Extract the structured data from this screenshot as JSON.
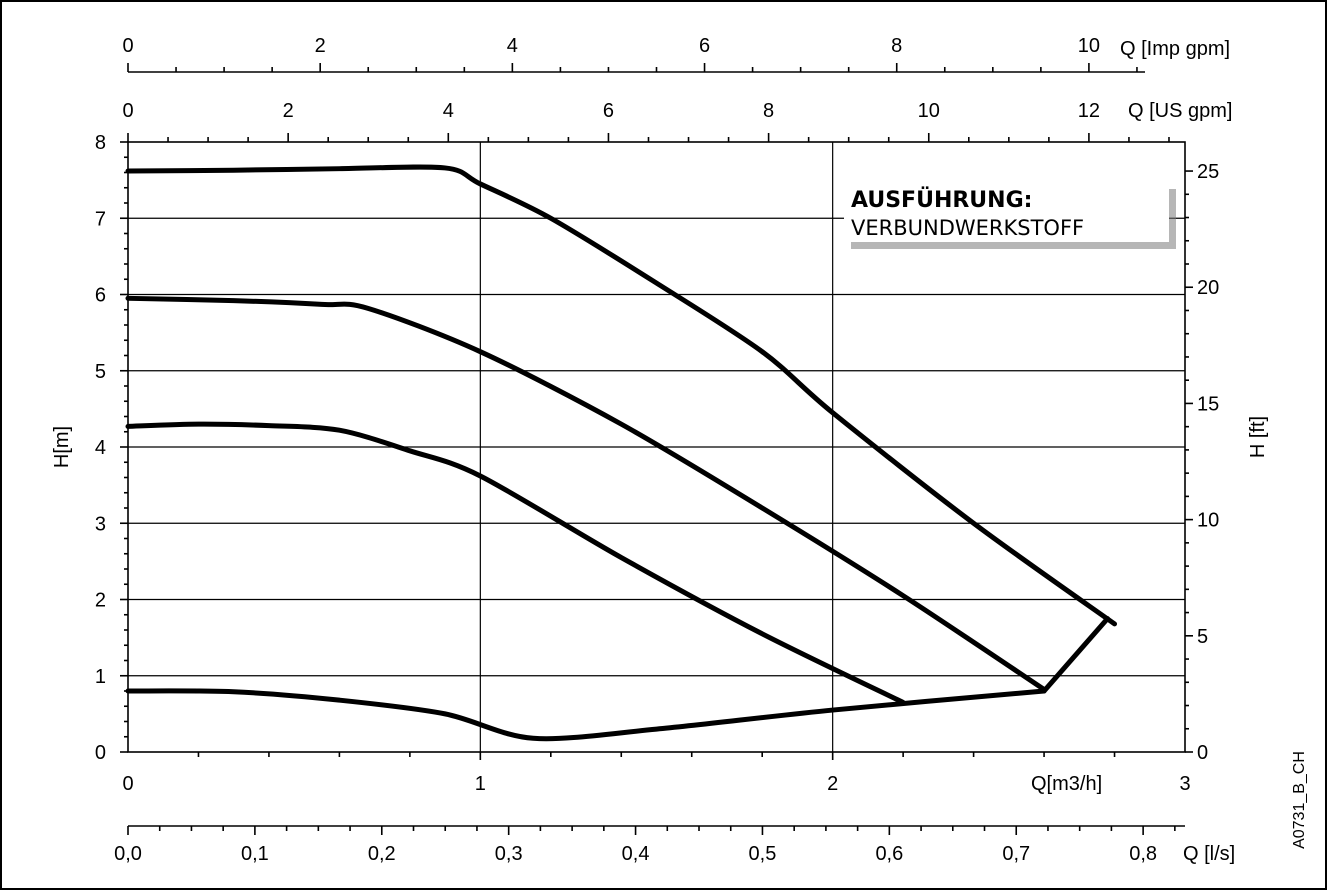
{
  "chart_data": {
    "type": "line",
    "x_axis_bottom": {
      "label": "Q[m3/h]",
      "range": [
        0,
        3
      ],
      "ticks": [
        "0",
        "1",
        "2",
        "3"
      ]
    },
    "x_axis_ls": {
      "label": "Q [l/s]",
      "range": [
        0,
        0.833
      ],
      "ticks": [
        "0,0",
        "0,1",
        "0,2",
        "0,3",
        "0,4",
        "0,5",
        "0,6",
        "0,7",
        "0,8"
      ]
    },
    "x_axis_usgpm": {
      "label": "Q [US gpm]",
      "range": [
        0,
        13.2
      ],
      "ticks": [
        "0",
        "2",
        "4",
        "6",
        "8",
        "10",
        "12"
      ]
    },
    "x_axis_impgpm": {
      "label": "Q [Imp gpm]",
      "range": [
        0,
        11.0
      ],
      "ticks": [
        "0",
        "2",
        "4",
        "6",
        "8",
        "10"
      ]
    },
    "y_axis_left": {
      "label": "H[m]",
      "range": [
        0,
        8
      ],
      "ticks": [
        "0",
        "1",
        "2",
        "3",
        "4",
        "5",
        "6",
        "7",
        "8"
      ]
    },
    "y_axis_right": {
      "label": "H [ft]",
      "range": [
        0,
        26.25
      ],
      "ticks": [
        "0",
        "5",
        "10",
        "15",
        "20",
        "25"
      ]
    },
    "grid": true,
    "series": [
      {
        "values": [
          [
            0,
            7.62
          ],
          [
            0.3,
            7.63
          ],
          [
            0.6,
            7.65
          ],
          [
            0.9,
            7.66
          ],
          [
            1.0,
            7.45
          ],
          [
            1.2,
            7.0
          ],
          [
            1.5,
            6.15
          ],
          [
            1.8,
            5.25
          ],
          [
            2.0,
            4.45
          ],
          [
            2.4,
            3.0
          ],
          [
            2.8,
            1.68
          ]
        ]
      },
      {
        "values": [
          [
            0,
            5.95
          ],
          [
            0.3,
            5.92
          ],
          [
            0.55,
            5.87
          ],
          [
            0.68,
            5.82
          ],
          [
            1.0,
            5.25
          ],
          [
            1.4,
            4.3
          ],
          [
            1.8,
            3.2
          ],
          [
            2.2,
            2.05
          ],
          [
            2.6,
            0.82
          ]
        ]
      },
      {
        "values": [
          [
            0,
            4.27
          ],
          [
            0.2,
            4.3
          ],
          [
            0.4,
            4.28
          ],
          [
            0.6,
            4.22
          ],
          [
            0.8,
            3.95
          ],
          [
            1.0,
            3.62
          ],
          [
            1.4,
            2.55
          ],
          [
            1.8,
            1.55
          ],
          [
            2.2,
            0.65
          ]
        ]
      },
      {
        "values": [
          [
            0,
            0.8
          ],
          [
            0.3,
            0.79
          ],
          [
            0.6,
            0.68
          ],
          [
            0.9,
            0.5
          ],
          [
            1.15,
            0.18
          ],
          [
            1.5,
            0.3
          ],
          [
            2.0,
            0.55
          ],
          [
            2.6,
            0.8
          ]
        ]
      },
      {
        "values": [
          [
            2.6,
            0.8
          ],
          [
            2.78,
            1.75
          ]
        ]
      }
    ],
    "annotation": {
      "title": "AUSFÜHRUNG:",
      "text": "VERBUNDWERKSTOFF"
    },
    "figure_id": "A0731_B_CH"
  }
}
